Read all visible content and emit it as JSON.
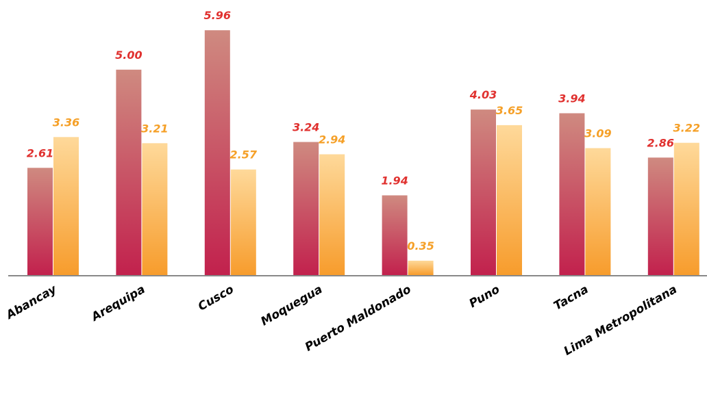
{
  "chart_data": {
    "type": "bar",
    "title": "",
    "xlabel": "",
    "ylabel": "",
    "categories": [
      "Abancay",
      "Arequipa",
      "Cusco",
      "Moquegua",
      "Puerto Maldonado",
      "Puno",
      "Tacna",
      "Lima Metropolitana"
    ],
    "series": [
      {
        "values": [
          2.61,
          5.0,
          5.96,
          3.24,
          1.94,
          4.03,
          3.94,
          2.86
        ],
        "value_labels": [
          "2.61",
          "5.00",
          "5.96",
          "3.24",
          "1.94",
          "4.03",
          "3.94",
          "2.86"
        ],
        "color_top": "#cf8a80",
        "color_bottom": "#c2214d",
        "label_color": "#e0312f"
      },
      {
        "values": [
          3.36,
          3.21,
          2.57,
          2.94,
          0.35,
          3.65,
          3.09,
          3.22
        ],
        "value_labels": [
          "3.36",
          "3.21",
          "2.57",
          "2.94",
          "0.35",
          "3.65",
          "3.09",
          "3.22"
        ],
        "color_top": "#fed99a",
        "color_bottom": "#f79c2c",
        "label_color": "#f5a028"
      }
    ],
    "ylim": [
      0,
      6.13
    ],
    "grid": false,
    "legend": "none",
    "axis_color": "#888888"
  }
}
